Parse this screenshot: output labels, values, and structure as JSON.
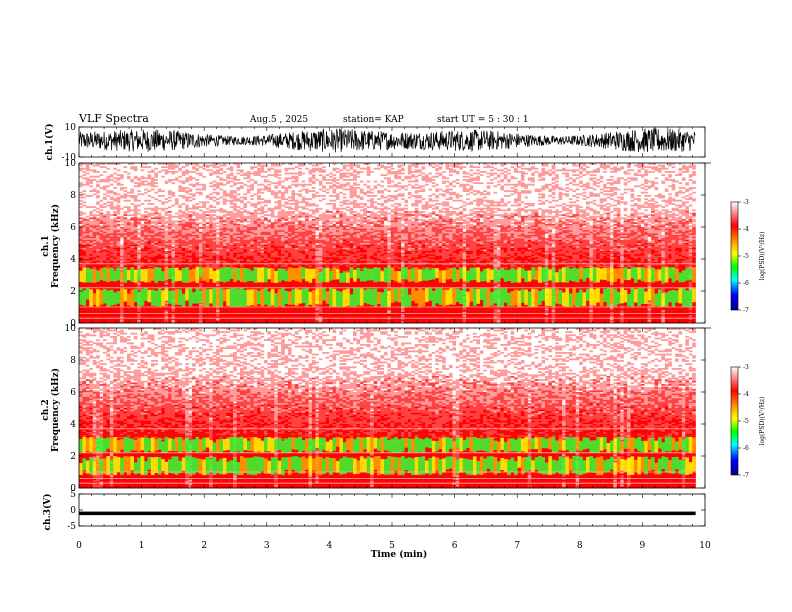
{
  "header": {
    "title": "VLF Spectra",
    "date": "Aug.5  , 2025",
    "station": "station= KAP",
    "start_ut": "start  UT  =   5  : 30 : 1"
  },
  "chart_data": [
    {
      "type": "line",
      "name": "ch1-waveform",
      "ylabel": "ch.1(V)",
      "ylim": [
        -10,
        10
      ],
      "yticks": [
        "10",
        "-10"
      ],
      "series": [
        {
          "name": "ch.1",
          "color": "#000000",
          "description": "dense noisy waveform spanning roughly -8 to 9 V"
        }
      ]
    },
    {
      "type": "heatmap",
      "name": "ch1-spectrogram",
      "ylabel": "ch.1\nFrequency (kHz)",
      "ylim": [
        0,
        10
      ],
      "yticks": [
        "0",
        "2",
        "4",
        "6",
        "8",
        "10"
      ],
      "colorbar": {
        "label": "log(PSD)(V²/Hz)",
        "range": [
          -7,
          -3
        ],
        "ticks": [
          "-3",
          "-4",
          "-5",
          "-6",
          "-7"
        ]
      },
      "bands_khz": [
        [
          1.0,
          2.2
        ],
        [
          2.5,
          3.5
        ]
      ],
      "description": "background power ~ -3.5 to -4 (red), enhanced green/yellow bands near 1-3.5 kHz"
    },
    {
      "type": "heatmap",
      "name": "ch2-spectrogram",
      "ylabel": "ch.2\nFrequency (kHz)",
      "ylim": [
        0,
        10
      ],
      "yticks": [
        "0",
        "2",
        "4",
        "6",
        "8",
        "10"
      ],
      "colorbar": {
        "label": "log(PSD)(V²/Hz)",
        "range": [
          -7,
          -3
        ],
        "ticks": [
          "-3",
          "-4",
          "-5",
          "-6",
          "-7"
        ]
      },
      "bands_khz": [
        [
          0.8,
          2.0
        ],
        [
          2.2,
          3.2
        ]
      ],
      "description": "background power ~ -3.5 to -4 (red), enhanced green/yellow bands near 0.8-3.2 kHz"
    },
    {
      "type": "line",
      "name": "ch3-waveform",
      "ylabel": "ch.3(V)",
      "ylim": [
        -5,
        5
      ],
      "yticks": [
        "5",
        "0",
        "-5"
      ],
      "series": [
        {
          "name": "ch.3",
          "color": "#000000",
          "description": "narrow dense band near -1 V"
        }
      ]
    }
  ],
  "x_axis": {
    "label": "Time  (min)",
    "xlim": [
      0,
      10
    ],
    "data_end_min": 9.85,
    "ticks": [
      "0",
      "1",
      "2",
      "3",
      "4",
      "5",
      "6",
      "7",
      "8",
      "9",
      "10"
    ]
  },
  "colormap": [
    "#ffffff",
    "#ff3030",
    "#ff0000",
    "#ffa500",
    "#ffff00",
    "#00ff00",
    "#00ffff",
    "#0000ff",
    "#00008b"
  ]
}
